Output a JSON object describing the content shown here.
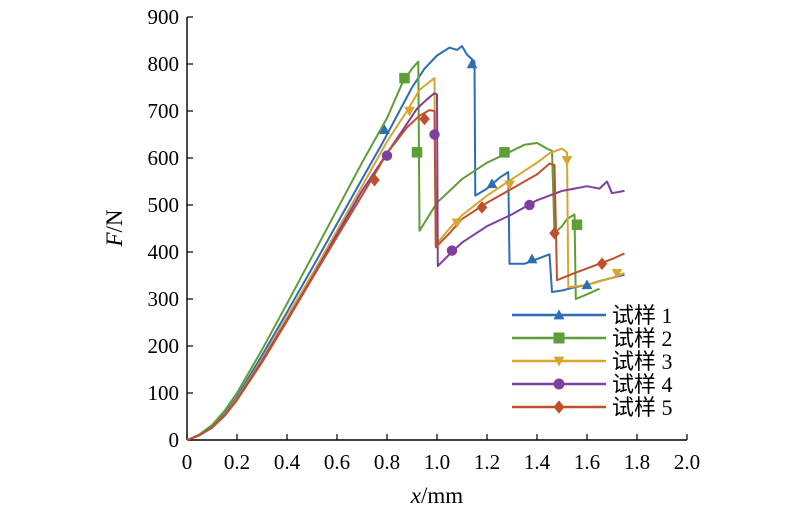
{
  "chart_data": {
    "type": "line",
    "title": "",
    "xlabel_var": "x",
    "xlabel_unit": "/mm",
    "ylabel_var": "F",
    "ylabel_unit": "/N",
    "xlim": [
      0,
      2.0
    ],
    "ylim": [
      0,
      900
    ],
    "x_ticks": [
      "0",
      "0.2",
      "0.4",
      "0.6",
      "0.8",
      "1.0",
      "1.2",
      "1.4",
      "1.6",
      "1.8",
      "2.0"
    ],
    "y_ticks": [
      "0",
      "100",
      "200",
      "300",
      "400",
      "500",
      "600",
      "700",
      "800",
      "900"
    ],
    "grid": false,
    "legend_position": "bottom-right",
    "series": [
      {
        "name": "试样 1",
        "color": "#2e6db4",
        "marker": "triangle-up",
        "points": [
          [
            0,
            0
          ],
          [
            0.05,
            10
          ],
          [
            0.1,
            28
          ],
          [
            0.15,
            55
          ],
          [
            0.2,
            92
          ],
          [
            0.3,
            180
          ],
          [
            0.4,
            272
          ],
          [
            0.5,
            365
          ],
          [
            0.6,
            460
          ],
          [
            0.7,
            555
          ],
          [
            0.78,
            630
          ],
          [
            0.85,
            700
          ],
          [
            0.9,
            750
          ],
          [
            0.95,
            790
          ],
          [
            1.0,
            818
          ],
          [
            1.05,
            835
          ],
          [
            1.08,
            830
          ],
          [
            1.1,
            838
          ],
          [
            1.12,
            820
          ],
          [
            1.15,
            805
          ],
          [
            1.153,
            520
          ],
          [
            1.2,
            535
          ],
          [
            1.25,
            558
          ],
          [
            1.285,
            570
          ],
          [
            1.29,
            375
          ],
          [
            1.35,
            375
          ],
          [
            1.4,
            385
          ],
          [
            1.45,
            395
          ],
          [
            1.46,
            315
          ],
          [
            1.5,
            318
          ],
          [
            1.55,
            325
          ],
          [
            1.6,
            330
          ],
          [
            1.65,
            338
          ],
          [
            1.7,
            345
          ],
          [
            1.75,
            352
          ]
        ],
        "markers": [
          [
            0.79,
            660
          ],
          [
            1.14,
            800
          ],
          [
            1.22,
            545
          ],
          [
            1.38,
            385
          ],
          [
            1.6,
            330
          ]
        ]
      },
      {
        "name": "试样 2",
        "color": "#5d9e37",
        "marker": "square",
        "points": [
          [
            0,
            0
          ],
          [
            0.05,
            12
          ],
          [
            0.1,
            32
          ],
          [
            0.15,
            62
          ],
          [
            0.2,
            100
          ],
          [
            0.3,
            192
          ],
          [
            0.4,
            290
          ],
          [
            0.5,
            390
          ],
          [
            0.6,
            490
          ],
          [
            0.7,
            590
          ],
          [
            0.8,
            685
          ],
          [
            0.86,
            758
          ],
          [
            0.9,
            790
          ],
          [
            0.925,
            805
          ],
          [
            0.93,
            445
          ],
          [
            1.0,
            505
          ],
          [
            1.1,
            555
          ],
          [
            1.2,
            590
          ],
          [
            1.3,
            615
          ],
          [
            1.35,
            628
          ],
          [
            1.4,
            632
          ],
          [
            1.44,
            620
          ],
          [
            1.46,
            615
          ],
          [
            1.47,
            440
          ],
          [
            1.5,
            455
          ],
          [
            1.52,
            470
          ],
          [
            1.55,
            480
          ],
          [
            1.555,
            300
          ],
          [
            1.6,
            310
          ],
          [
            1.65,
            322
          ]
        ],
        "markers": [
          [
            0.87,
            770
          ],
          [
            0.92,
            612
          ],
          [
            1.27,
            612
          ],
          [
            1.56,
            458
          ]
        ]
      },
      {
        "name": "试样 3",
        "color": "#d9a531",
        "marker": "triangle-down",
        "points": [
          [
            0,
            0
          ],
          [
            0.05,
            10
          ],
          [
            0.1,
            27
          ],
          [
            0.15,
            53
          ],
          [
            0.2,
            88
          ],
          [
            0.3,
            172
          ],
          [
            0.4,
            262
          ],
          [
            0.5,
            352
          ],
          [
            0.6,
            445
          ],
          [
            0.7,
            540
          ],
          [
            0.8,
            635
          ],
          [
            0.88,
            700
          ],
          [
            0.93,
            745
          ],
          [
            0.97,
            762
          ],
          [
            0.99,
            770
          ],
          [
            0.995,
            415
          ],
          [
            1.05,
            450
          ],
          [
            1.1,
            478
          ],
          [
            1.2,
            520
          ],
          [
            1.3,
            555
          ],
          [
            1.4,
            590
          ],
          [
            1.45,
            610
          ],
          [
            1.5,
            620
          ],
          [
            1.52,
            612
          ],
          [
            1.525,
            325
          ],
          [
            1.6,
            330
          ],
          [
            1.7,
            345
          ],
          [
            1.75,
            355
          ]
        ],
        "markers": [
          [
            0.89,
            700
          ],
          [
            1.08,
            462
          ],
          [
            1.29,
            543
          ],
          [
            1.52,
            595
          ],
          [
            1.72,
            355
          ]
        ]
      },
      {
        "name": "试样 4",
        "color": "#7e3f9d",
        "marker": "circle",
        "points": [
          [
            0,
            0
          ],
          [
            0.05,
            10
          ],
          [
            0.1,
            27
          ],
          [
            0.15,
            52
          ],
          [
            0.2,
            86
          ],
          [
            0.3,
            168
          ],
          [
            0.4,
            255
          ],
          [
            0.5,
            345
          ],
          [
            0.6,
            438
          ],
          [
            0.7,
            530
          ],
          [
            0.8,
            610
          ],
          [
            0.87,
            665
          ],
          [
            0.92,
            705
          ],
          [
            0.96,
            725
          ],
          [
            0.99,
            738
          ],
          [
            1.0,
            735
          ],
          [
            1.003,
            370
          ],
          [
            1.05,
            395
          ],
          [
            1.1,
            420
          ],
          [
            1.2,
            455
          ],
          [
            1.3,
            480
          ],
          [
            1.35,
            495
          ],
          [
            1.4,
            510
          ],
          [
            1.45,
            520
          ],
          [
            1.5,
            530
          ],
          [
            1.55,
            535
          ],
          [
            1.6,
            540
          ],
          [
            1.65,
            535
          ],
          [
            1.68,
            550
          ],
          [
            1.7,
            525
          ],
          [
            1.75,
            530
          ]
        ],
        "markers": [
          [
            0.8,
            605
          ],
          [
            0.99,
            650
          ],
          [
            1.06,
            403
          ],
          [
            1.37,
            500
          ]
        ]
      },
      {
        "name": "试样 5",
        "color": "#c0502b",
        "marker": "diamond",
        "points": [
          [
            0,
            0
          ],
          [
            0.05,
            10
          ],
          [
            0.1,
            26
          ],
          [
            0.15,
            51
          ],
          [
            0.2,
            85
          ],
          [
            0.3,
            165
          ],
          [
            0.4,
            253
          ],
          [
            0.5,
            343
          ],
          [
            0.6,
            432
          ],
          [
            0.7,
            520
          ],
          [
            0.8,
            610
          ],
          [
            0.88,
            665
          ],
          [
            0.93,
            690
          ],
          [
            0.97,
            702
          ],
          [
            0.99,
            700
          ],
          [
            0.995,
            410
          ],
          [
            1.05,
            440
          ],
          [
            1.1,
            470
          ],
          [
            1.2,
            505
          ],
          [
            1.3,
            535
          ],
          [
            1.4,
            565
          ],
          [
            1.45,
            588
          ],
          [
            1.47,
            585
          ],
          [
            1.48,
            340
          ],
          [
            1.55,
            355
          ],
          [
            1.6,
            365
          ],
          [
            1.7,
            385
          ],
          [
            1.75,
            397
          ]
        ],
        "markers": [
          [
            0.75,
            553
          ],
          [
            0.95,
            683
          ],
          [
            1.18,
            495
          ],
          [
            1.47,
            440
          ],
          [
            1.66,
            375
          ]
        ]
      }
    ]
  }
}
